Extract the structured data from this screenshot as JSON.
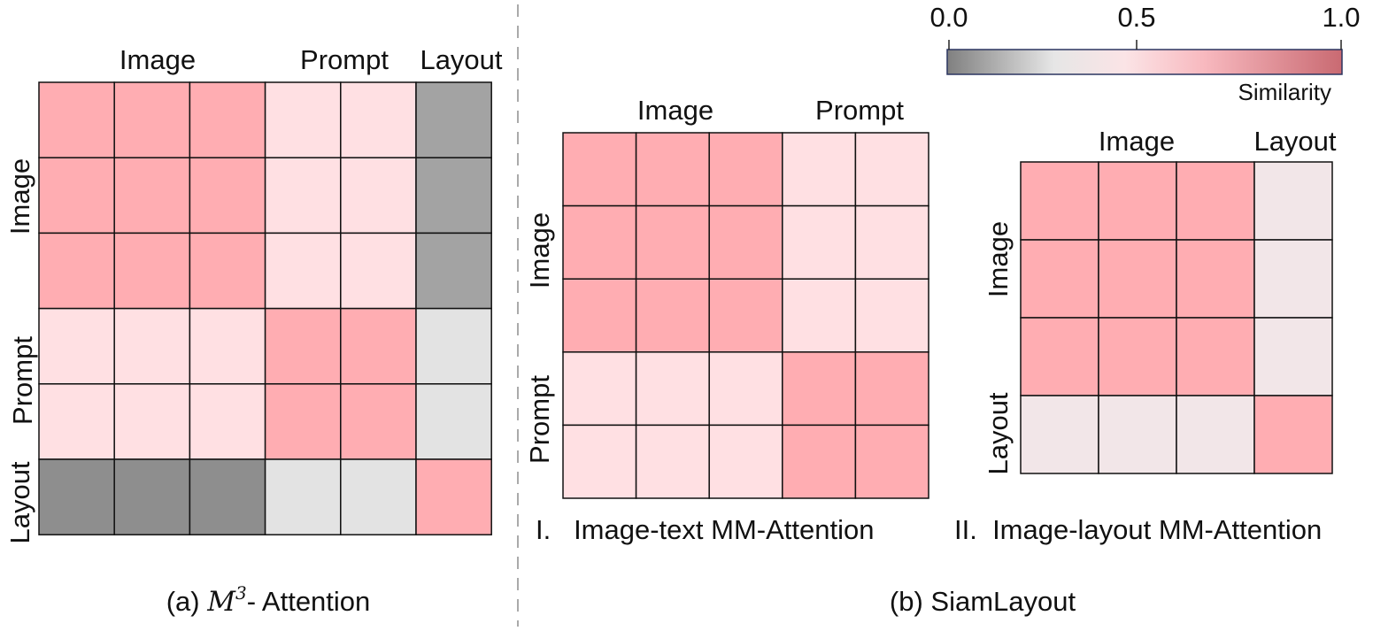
{
  "legend": {
    "ticks": [
      "0.0",
      "0.5",
      "1.0"
    ],
    "title": "Similarity",
    "gradient": [
      "#808080",
      "#e6e6e6",
      "#fbe4e6",
      "#f8b9bf",
      "#c96a72"
    ]
  },
  "panel_a": {
    "col_labels": [
      "Image",
      "Prompt",
      "Layout"
    ],
    "row_labels": [
      "Image",
      "Prompt",
      "Layout"
    ],
    "caption_prefix": "(a) ",
    "caption_math_base": "M",
    "caption_math_sup": "3",
    "caption_suffix": "- Attention",
    "grid": [
      [
        "#ffadb2",
        "#ffadb2",
        "#ffadb2",
        "#ffe0e3",
        "#ffe0e3",
        "#a3a3a3"
      ],
      [
        "#ffadb2",
        "#ffadb2",
        "#ffadb2",
        "#ffe0e3",
        "#ffe0e3",
        "#a3a3a3"
      ],
      [
        "#ffadb2",
        "#ffadb2",
        "#ffadb2",
        "#ffe0e3",
        "#ffe0e3",
        "#a3a3a3"
      ],
      [
        "#ffe0e3",
        "#ffe0e3",
        "#ffe0e3",
        "#ffadb2",
        "#ffadb2",
        "#e3e3e3"
      ],
      [
        "#ffe0e3",
        "#ffe0e3",
        "#ffe0e3",
        "#ffadb2",
        "#ffadb2",
        "#e3e3e3"
      ],
      [
        "#8e8e8e",
        "#8e8e8e",
        "#8e8e8e",
        "#e3e3e3",
        "#e3e3e3",
        "#ffadb2"
      ]
    ]
  },
  "panel_b1": {
    "col_labels": [
      "Image",
      "Prompt"
    ],
    "row_labels": [
      "Image",
      "Prompt"
    ],
    "caption": "I.   Image-text MM-Attention",
    "grid": [
      [
        "#ffadb2",
        "#ffadb2",
        "#ffadb2",
        "#ffe0e3",
        "#ffe0e3"
      ],
      [
        "#ffadb2",
        "#ffadb2",
        "#ffadb2",
        "#ffe0e3",
        "#ffe0e3"
      ],
      [
        "#ffadb2",
        "#ffadb2",
        "#ffadb2",
        "#ffe0e3",
        "#ffe0e3"
      ],
      [
        "#ffe0e3",
        "#ffe0e3",
        "#ffe0e3",
        "#ffadb2",
        "#ffadb2"
      ],
      [
        "#ffe0e3",
        "#ffe0e3",
        "#ffe0e3",
        "#ffadb2",
        "#ffadb2"
      ]
    ]
  },
  "panel_b2": {
    "col_labels": [
      "Image",
      "Layout"
    ],
    "row_labels": [
      "Image",
      "Layout"
    ],
    "caption": "II.  Image-layout MM-Attention",
    "grid": [
      [
        "#ffadb2",
        "#ffadb2",
        "#ffadb2",
        "#f2e6e8"
      ],
      [
        "#ffadb2",
        "#ffadb2",
        "#ffadb2",
        "#f2e6e8"
      ],
      [
        "#ffadb2",
        "#ffadb2",
        "#ffadb2",
        "#f2e6e8"
      ],
      [
        "#f2e6e8",
        "#f2e6e8",
        "#f2e6e8",
        "#ffadb2"
      ]
    ]
  },
  "panel_b_caption": "(b) SiamLayout"
}
